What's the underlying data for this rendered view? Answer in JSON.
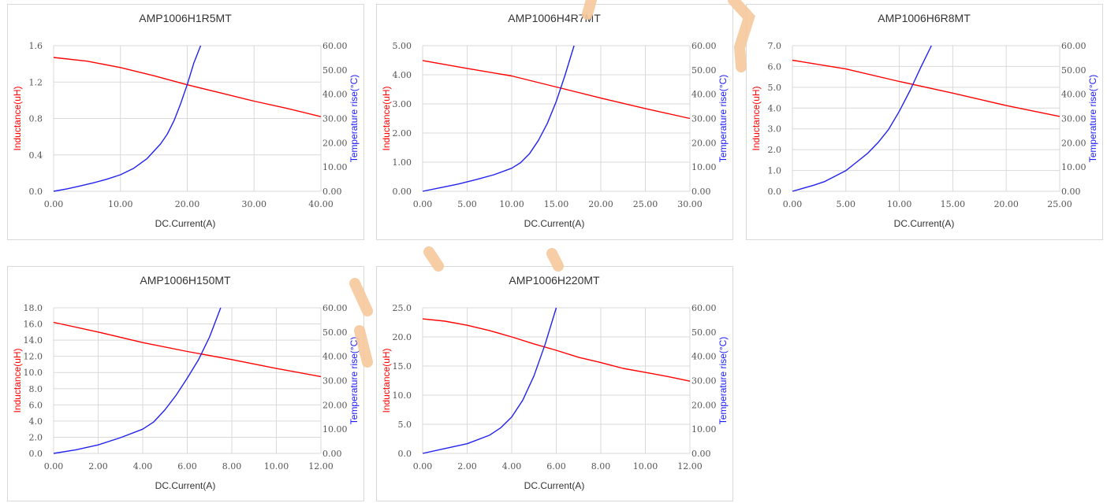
{
  "colors": {
    "inductance": "#ff0000",
    "temperature": "#2222ee",
    "grid": "#d9d9d9",
    "watermark": "#f5c89a"
  },
  "chart_data": [
    {
      "type": "line",
      "title": "AMP1006H1R5MT",
      "xlabel": "DC.Current(A)",
      "ylabel_left": "Inductance(uH)",
      "ylabel_right": "Temperature rise(°C)",
      "xlim": [
        0,
        40
      ],
      "ylim_left": [
        0,
        1.6
      ],
      "ylim_right": [
        0,
        60
      ],
      "x_ticks": [
        "0.00",
        "10.00",
        "20.00",
        "30.00",
        "40.00"
      ],
      "y_left_ticks": [
        "0.0",
        "0.4",
        "0.8",
        "1.2",
        "1.6"
      ],
      "y_right_ticks": [
        "0.00",
        "10.00",
        "20.00",
        "30.00",
        "40.00",
        "50.00",
        "60.00"
      ],
      "grid": true,
      "series": [
        {
          "name": "Inductance(uH)",
          "axis": "left",
          "x": [
            0,
            5,
            10,
            15,
            20,
            25,
            30,
            35,
            40
          ],
          "y": [
            1.47,
            1.43,
            1.36,
            1.27,
            1.17,
            1.08,
            0.99,
            0.91,
            0.82
          ]
        },
        {
          "name": "Temperature rise(°C)",
          "axis": "right",
          "x": [
            0,
            2,
            4,
            6,
            8,
            10,
            12,
            14,
            16,
            17,
            18,
            19,
            20,
            21,
            22
          ],
          "y": [
            0,
            1,
            2.2,
            3.5,
            5,
            6.8,
            9.5,
            13.5,
            19.5,
            23.5,
            29,
            36,
            44,
            53,
            60
          ]
        }
      ]
    },
    {
      "type": "line",
      "title": "AMP1006H4R7MT",
      "xlabel": "DC.Current(A)",
      "ylabel_left": "Inductance(uH)",
      "ylabel_right": "Temperature rise(°C)",
      "xlim": [
        0,
        30
      ],
      "ylim_left": [
        0,
        5
      ],
      "ylim_right": [
        0,
        60
      ],
      "x_ticks": [
        "0.00",
        "5.00",
        "10.00",
        "15.00",
        "20.00",
        "25.00",
        "30.00"
      ],
      "y_left_ticks": [
        "0.00",
        "1.00",
        "2.00",
        "3.00",
        "4.00",
        "5.00"
      ],
      "y_right_ticks": [
        "0.00",
        "10.00",
        "20.00",
        "30.00",
        "40.00",
        "50.00",
        "60.00"
      ],
      "grid": true,
      "series": [
        {
          "name": "Inductance(uH)",
          "axis": "left",
          "x": [
            0,
            5,
            10,
            15,
            20,
            25,
            30
          ],
          "y": [
            4.49,
            4.22,
            3.96,
            3.58,
            3.2,
            2.84,
            2.5
          ]
        },
        {
          "name": "Temperature rise(°C)",
          "axis": "right",
          "x": [
            0,
            2,
            4,
            6,
            8,
            10,
            11,
            12,
            13,
            14,
            15,
            16,
            17
          ],
          "y": [
            0,
            1.5,
            3,
            4.8,
            6.8,
            9.5,
            11.8,
            15.5,
            21,
            28,
            37,
            48,
            60
          ]
        }
      ]
    },
    {
      "type": "line",
      "title": "AMP1006H6R8MT",
      "xlabel": "DC.Current(A)",
      "ylabel_left": "Inductance(uH)",
      "ylabel_right": "Temperature rise(°C)",
      "xlim": [
        0,
        25
      ],
      "ylim_left": [
        0,
        7
      ],
      "ylim_right": [
        0,
        60
      ],
      "x_ticks": [
        "0.00",
        "5.00",
        "10.00",
        "15.00",
        "20.00",
        "25.00"
      ],
      "y_left_ticks": [
        "0.0",
        "1.0",
        "2.0",
        "3.0",
        "4.0",
        "5.0",
        "6.0",
        "7.0"
      ],
      "y_right_ticks": [
        "0.00",
        "10.00",
        "20.00",
        "30.00",
        "40.00",
        "50.00",
        "60.00"
      ],
      "grid": true,
      "series": [
        {
          "name": "Inductance(uH)",
          "axis": "left",
          "x": [
            0,
            5,
            10,
            15,
            20,
            25
          ],
          "y": [
            6.3,
            5.88,
            5.28,
            4.72,
            4.12,
            3.6
          ]
        },
        {
          "name": "Temperature rise(°C)",
          "axis": "right",
          "x": [
            0,
            2,
            3,
            5,
            6,
            7,
            8,
            9,
            10,
            11,
            12,
            13
          ],
          "y": [
            0,
            2.5,
            4,
            8.5,
            12,
            15.5,
            20,
            25.5,
            33,
            41.5,
            51,
            60
          ]
        }
      ]
    },
    {
      "type": "line",
      "title": "AMP1006H150MT",
      "xlabel": "DC.Current(A)",
      "ylabel_left": "Inductance(uH)",
      "ylabel_right": "Temperature rise(°C)",
      "xlim": [
        0,
        12
      ],
      "ylim_left": [
        0,
        18
      ],
      "ylim_right": [
        0,
        60
      ],
      "x_ticks": [
        "0.00",
        "2.00",
        "4.00",
        "6.00",
        "8.00",
        "10.00",
        "12.00"
      ],
      "y_left_ticks": [
        "0.0",
        "2.0",
        "4.0",
        "6.0",
        "8.0",
        "10.0",
        "12.0",
        "14.0",
        "16.0",
        "18.0"
      ],
      "y_right_ticks": [
        "0.00",
        "10.00",
        "20.00",
        "30.00",
        "40.00",
        "50.00",
        "60.00"
      ],
      "grid": true,
      "series": [
        {
          "name": "Inductance(uH)",
          "axis": "left",
          "x": [
            0,
            2,
            4,
            6,
            8,
            10,
            12
          ],
          "y": [
            16.2,
            15.0,
            13.7,
            12.6,
            11.6,
            10.5,
            9.5
          ]
        },
        {
          "name": "Temperature rise(°C)",
          "axis": "right",
          "x": [
            0,
            1,
            2,
            3,
            4,
            4.5,
            5,
            5.5,
            6,
            6.5,
            7,
            7.5
          ],
          "y": [
            0,
            1.5,
            3.5,
            6.5,
            10,
            13,
            18,
            24,
            31,
            38.5,
            48,
            60
          ]
        }
      ]
    },
    {
      "type": "line",
      "title": "AMP1006H220MT",
      "xlabel": "DC.Current(A)",
      "ylabel_left": "Inductance(uH)",
      "ylabel_right": "Temperature rise(°C)",
      "xlim": [
        0,
        12
      ],
      "ylim_left": [
        0,
        25
      ],
      "ylim_right": [
        0,
        60
      ],
      "x_ticks": [
        "0.00",
        "2.00",
        "4.00",
        "6.00",
        "8.00",
        "10.00",
        "12.00"
      ],
      "y_left_ticks": [
        "0.0",
        "5.0",
        "10.0",
        "15.0",
        "20.0",
        "25.0"
      ],
      "y_right_ticks": [
        "0.00",
        "10.00",
        "20.00",
        "30.00",
        "40.00",
        "50.00",
        "60.00"
      ],
      "grid": true,
      "series": [
        {
          "name": "Inductance(uH)",
          "axis": "left",
          "x": [
            0,
            1,
            2,
            3,
            4,
            5,
            6,
            7,
            8,
            9,
            10,
            11,
            12
          ],
          "y": [
            23.1,
            22.7,
            22.0,
            21.1,
            20.0,
            18.8,
            17.7,
            16.5,
            15.6,
            14.6,
            13.9,
            13.2,
            12.4
          ]
        },
        {
          "name": "Temperature rise(°C)",
          "axis": "right",
          "x": [
            0,
            1,
            2,
            3,
            3.5,
            4,
            4.5,
            5,
            5.5,
            6
          ],
          "y": [
            0,
            2,
            4,
            7.5,
            10.5,
            15,
            22,
            32,
            45,
            60
          ]
        }
      ]
    }
  ]
}
